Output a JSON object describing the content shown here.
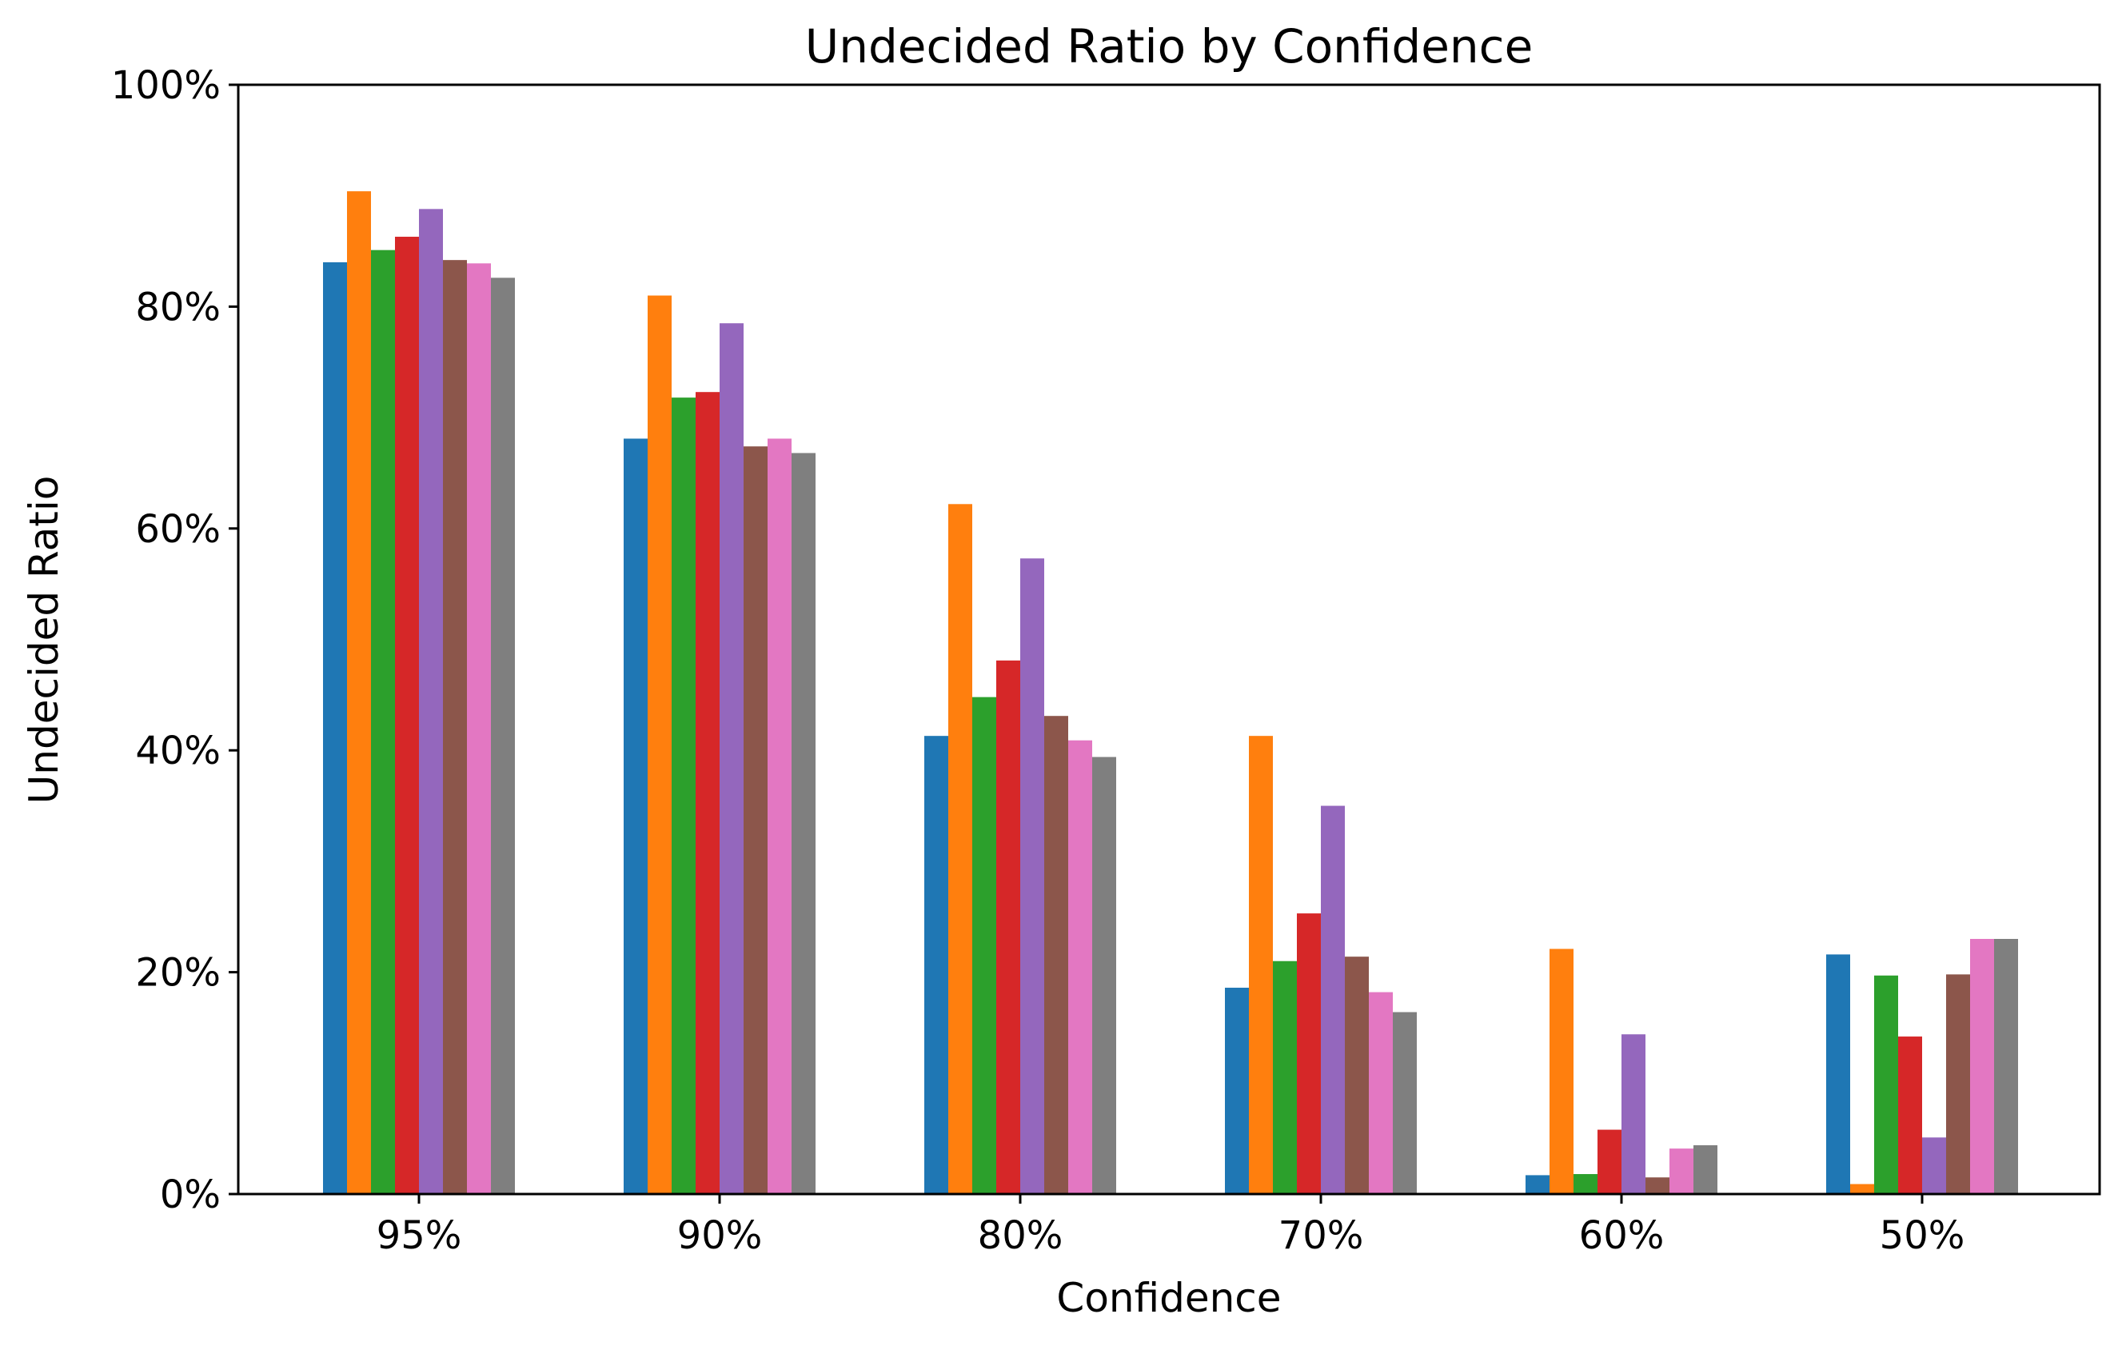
{
  "chart_data": {
    "type": "bar",
    "title": "Undecided Ratio by Confidence",
    "xlabel": "Confidence",
    "ylabel": "Undecided Ratio",
    "categories": [
      "95%",
      "90%",
      "80%",
      "70%",
      "60%",
      "50%"
    ],
    "ylim": [
      0,
      1
    ],
    "yticks": [
      {
        "value": 0,
        "label": "0%"
      },
      {
        "value": 0.2,
        "label": "20%"
      },
      {
        "value": 0.4,
        "label": "40%"
      },
      {
        "value": 0.6,
        "label": "60%"
      },
      {
        "value": 0.8,
        "label": "80%"
      },
      {
        "value": 1.0,
        "label": "100%"
      }
    ],
    "grid": false,
    "legend": "none",
    "series": [
      {
        "color": "#1f77b4",
        "values": [
          0.84,
          0.681,
          0.413,
          0.186,
          0.017,
          0.216
        ]
      },
      {
        "color": "#ff7f0e",
        "values": [
          0.904,
          0.81,
          0.622,
          0.413,
          0.221,
          0.009
        ]
      },
      {
        "color": "#2ca02c",
        "values": [
          0.851,
          0.718,
          0.448,
          0.21,
          0.018,
          0.197
        ]
      },
      {
        "color": "#d62728",
        "values": [
          0.863,
          0.723,
          0.481,
          0.253,
          0.058,
          0.142
        ]
      },
      {
        "color": "#9467bd",
        "values": [
          0.888,
          0.785,
          0.573,
          0.35,
          0.144,
          0.051
        ]
      },
      {
        "color": "#8c564b",
        "values": [
          0.842,
          0.674,
          0.431,
          0.214,
          0.015,
          0.198
        ]
      },
      {
        "color": "#e377c2",
        "values": [
          0.839,
          0.681,
          0.409,
          0.182,
          0.041,
          0.23
        ]
      },
      {
        "color": "#7f7f7f",
        "values": [
          0.826,
          0.668,
          0.394,
          0.164,
          0.044,
          0.23
        ]
      }
    ]
  }
}
